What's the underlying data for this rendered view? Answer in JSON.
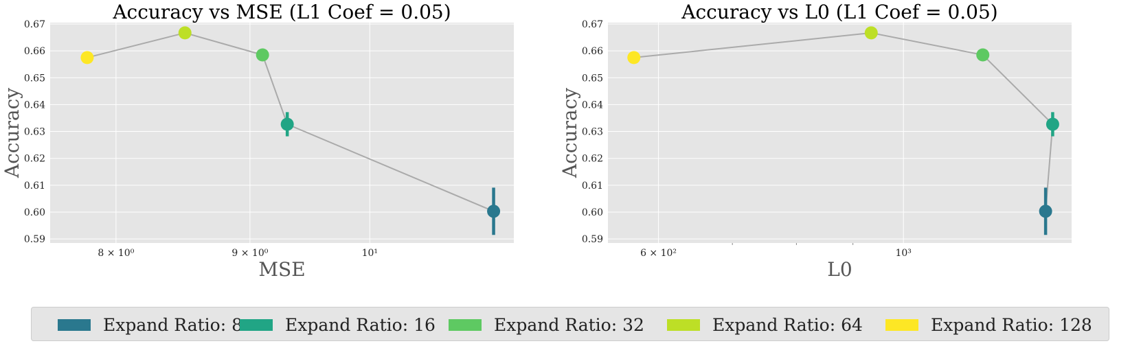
{
  "colors": {
    "background": "#e5e5e5",
    "grid": "#ffffff",
    "connector": "#aaaaaa",
    "text": "#222222",
    "axis_label": "#555555"
  },
  "chart_data": [
    {
      "type": "scatter",
      "title": "Accuracy vs MSE (L1 Coef = 0.05)",
      "xlabel": "MSE",
      "ylabel": "Accuracy",
      "xscale": "log",
      "xlim": [
        7.55,
        11.35
      ],
      "ylim": [
        0.5885,
        0.6705
      ],
      "grid": true,
      "xticks": [
        {
          "value": 8,
          "label": "8 × 10⁰"
        },
        {
          "value": 9,
          "label": "9 × 10⁰"
        },
        {
          "value": 10,
          "label": "10¹"
        }
      ],
      "yticks": [
        0.59,
        0.6,
        0.61,
        0.62,
        0.63,
        0.64,
        0.65,
        0.66,
        0.67
      ],
      "series": [
        {
          "name": "Expand Ratio: 128",
          "color": "#fde725",
          "x": 7.8,
          "y": 0.6575,
          "yerr": 0.0
        },
        {
          "name": "Expand Ratio: 64",
          "color": "#bddf26",
          "x": 8.5,
          "y": 0.6667,
          "yerr": 0.0
        },
        {
          "name": "Expand Ratio: 32",
          "color": "#5ec962",
          "x": 9.1,
          "y": 0.6585,
          "yerr": 0.0013
        },
        {
          "name": "Expand Ratio: 16",
          "color": "#21a585",
          "x": 9.3,
          "y": 0.6327,
          "yerr": 0.0045
        },
        {
          "name": "Expand Ratio: 8",
          "color": "#2a788e",
          "x": 11.15,
          "y": 0.6003,
          "yerr": 0.0088
        }
      ]
    },
    {
      "type": "scatter",
      "title": "Accuracy vs L0 (L1 Coef = 0.05)",
      "xlabel": "L0",
      "ylabel": "Accuracy",
      "xscale": "log",
      "xlim": [
        540,
        1420
      ],
      "ylim": [
        0.5885,
        0.6705
      ],
      "grid": true,
      "xticks": [
        {
          "value": 600,
          "label": "6 × 10²"
        },
        {
          "value": 1000,
          "label": "10³"
        }
      ],
      "series": [
        {
          "name": "Expand Ratio: 128",
          "color": "#fde725",
          "x": 570,
          "y": 0.6575,
          "yerr": 0.0
        },
        {
          "name": "Expand Ratio: 64",
          "color": "#bddf26",
          "x": 935,
          "y": 0.6667,
          "yerr": 0.0
        },
        {
          "name": "Expand Ratio: 32",
          "color": "#5ec962",
          "x": 1180,
          "y": 0.6585,
          "yerr": 0.0013
        },
        {
          "name": "Expand Ratio: 16",
          "color": "#21a585",
          "x": 1365,
          "y": 0.6327,
          "yerr": 0.0045
        },
        {
          "name": "Expand Ratio: 8",
          "color": "#2a788e",
          "x": 1345,
          "y": 0.6003,
          "yerr": 0.0088
        }
      ]
    }
  ],
  "legend": {
    "placement": "bottom",
    "items": [
      {
        "label": "Expand Ratio: 8",
        "color": "#2a788e"
      },
      {
        "label": "Expand Ratio: 16",
        "color": "#21a585"
      },
      {
        "label": "Expand Ratio: 32",
        "color": "#5ec962"
      },
      {
        "label": "Expand Ratio: 64",
        "color": "#bddf26"
      },
      {
        "label": "Expand Ratio: 128",
        "color": "#fde725"
      }
    ]
  }
}
